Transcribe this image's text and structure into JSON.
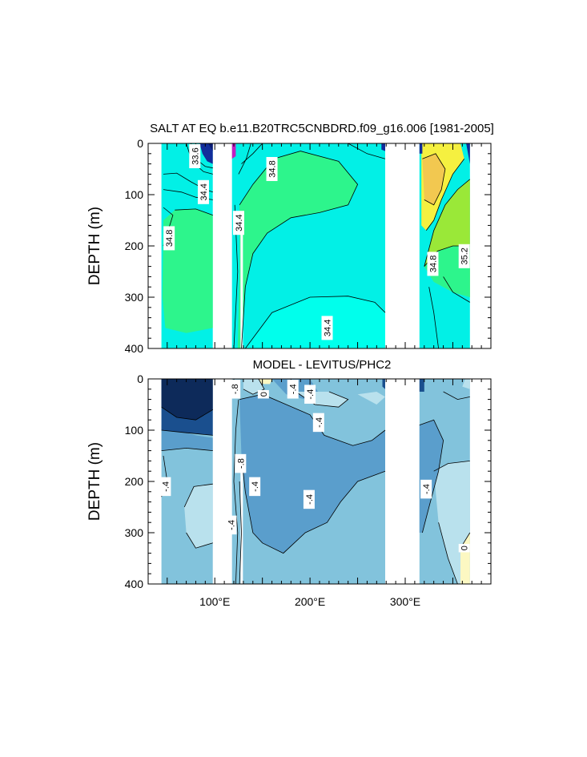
{
  "chart_data": [
    {
      "type": "heatmap",
      "title": "SALT AT EQ b.e11.B20TRC5CNBDRD.f09_g16.006 [1981-2005]",
      "ylabel": "DEPTH (m)",
      "ylim": [
        0,
        400
      ],
      "y_reversed": true,
      "y_ticks": [
        "0",
        "100",
        "200",
        "300",
        "400"
      ],
      "x_ticks": [],
      "contour_labels": [
        {
          "text": "33.6",
          "x": 79,
          "y": 25
        },
        {
          "text": "34.4",
          "x": 88,
          "y": 95
        },
        {
          "text": "34.8",
          "x": 52,
          "y": 185
        },
        {
          "text": "34.4",
          "x": 125,
          "y": 155
        },
        {
          "text": "34.8",
          "x": 160,
          "y": 50
        },
        {
          "text": "34.4",
          "x": 218,
          "y": 360
        },
        {
          "text": "34.8",
          "x": 329,
          "y": 235
        },
        {
          "text": "35.2",
          "x": 362,
          "y": 220
        }
      ]
    },
    {
      "type": "heatmap",
      "title": "MODEL - LEVITUS/PHC2",
      "ylabel": "DEPTH (m)",
      "ylim": [
        0,
        400
      ],
      "y_reversed": true,
      "y_ticks": [
        "0",
        "100",
        "200",
        "300",
        "400"
      ],
      "x_ticks": [
        "100°E",
        "200°E",
        "300°E"
      ],
      "contour_labels": [
        {
          "text": "-.8",
          "x": 121,
          "y": 20
        },
        {
          "text": "0",
          "x": 151,
          "y": 30
        },
        {
          "text": "-.4",
          "x": 182,
          "y": 20
        },
        {
          "text": "-.4",
          "x": 200,
          "y": 30
        },
        {
          "text": "-.4",
          "x": 209,
          "y": 85
        },
        {
          "text": "-.8",
          "x": 127,
          "y": 165
        },
        {
          "text": "-.4",
          "x": 142,
          "y": 210
        },
        {
          "text": "-.4",
          "x": 199,
          "y": 235
        },
        {
          "text": "-.4",
          "x": 48,
          "y": 210
        },
        {
          "text": "-.4",
          "x": 117,
          "y": 285
        },
        {
          "text": "-.4",
          "x": 322,
          "y": 215
        },
        {
          "text": "0",
          "x": 362,
          "y": 330
        }
      ]
    }
  ],
  "colors": {
    "salt_fill": "#02f0e6",
    "salt_high": "#2df58c",
    "salt_yellow": "#f5f040",
    "salt_orange": "#f2c850",
    "salt_lime": "#9ae838",
    "salt_dark": "#122d9a",
    "salt_magenta": "#c21fc0",
    "diff_base": "#82c3dc",
    "diff_mid": "#5a9ecc",
    "diff_dark": "#1a4f8e",
    "diff_darkest": "#0d2a5a",
    "diff_light": "#b9e1ed",
    "diff_pale": "#fcf8c2",
    "land": "#ffffff",
    "gray_bar": "#909090"
  }
}
